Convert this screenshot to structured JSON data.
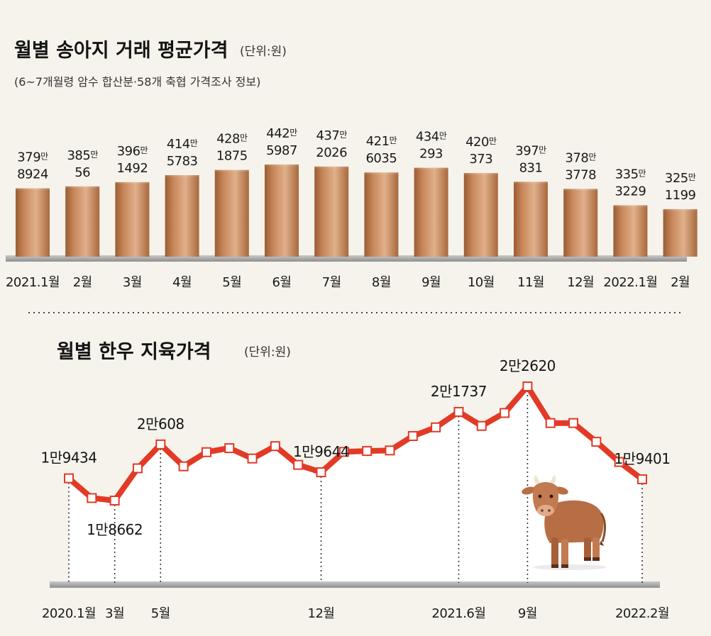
{
  "bar_chart": {
    "title": "월별 송아지 거래 평균가격",
    "unit": "(단위:원)",
    "subtitle": "(6~7개월령 암수 합산분·58개 축협 가격조사 정보)",
    "colors": {
      "bar_top": "#b77a4d",
      "bar_mid": "#d9a77c",
      "bar_dark": "#8f5530",
      "baseline": "#9a9a9a"
    }
  },
  "line_chart": {
    "title": "월별 한우 지육가격",
    "unit": "(단위:원)",
    "colors": {
      "line": "#e23a26",
      "marker_fill": "#ffffff",
      "area": "#ffffff",
      "baseline": "#9a9a9a"
    }
  },
  "chart_data": [
    {
      "type": "bar",
      "title": "월별 송아지 거래 평균가격",
      "unit": "(단위:원)",
      "subtitle": "(6~7개월령 암수 합산분·58개 축협 가격조사 정보)",
      "categories": [
        "2021.1월",
        "2월",
        "3월",
        "4월",
        "5월",
        "6월",
        "7월",
        "8월",
        "9월",
        "10월",
        "11월",
        "12월",
        "2022.1월",
        "2월"
      ],
      "values": [
        3798924,
        3850056,
        3961492,
        4145783,
        4281875,
        4425987,
        4372026,
        4216035,
        4340293,
        4200373,
        3970831,
        3783778,
        3353229,
        3251199
      ],
      "labels": [
        {
          "man": "379",
          "rest": "8924"
        },
        {
          "man": "385",
          "rest": "56"
        },
        {
          "man": "396",
          "rest": "1492"
        },
        {
          "man": "414",
          "rest": "5783"
        },
        {
          "man": "428",
          "rest": "1875"
        },
        {
          "man": "442",
          "rest": "5987"
        },
        {
          "man": "437",
          "rest": "2026"
        },
        {
          "man": "421",
          "rest": "6035"
        },
        {
          "man": "434",
          "rest": "293"
        },
        {
          "man": "420",
          "rest": "373"
        },
        {
          "man": "397",
          "rest": "831"
        },
        {
          "man": "378",
          "rest": "3778"
        },
        {
          "man": "335",
          "rest": "3229"
        },
        {
          "man": "325",
          "rest": "1199"
        }
      ],
      "man_suffix": "만"
    },
    {
      "type": "line",
      "title": "월별 한우 지육가격",
      "unit": "(단위:원)",
      "values": [
        19434,
        18750,
        18662,
        19780,
        20608,
        19850,
        20340,
        20480,
        20120,
        20550,
        19900,
        19644,
        20350,
        20380,
        20400,
        20900,
        21200,
        21737,
        21250,
        21700,
        22620,
        21350,
        21350,
        20700,
        20000,
        19401
      ],
      "x_labels": [
        {
          "index": 0,
          "text": "2020.1월"
        },
        {
          "index": 2,
          "text": "3월"
        },
        {
          "index": 4,
          "text": "5월"
        },
        {
          "index": 11,
          "text": "12월"
        },
        {
          "index": 17,
          "text": "2021.6월"
        },
        {
          "index": 20,
          "text": "9월"
        },
        {
          "index": 25,
          "text": "2022.2월"
        }
      ],
      "callouts": [
        {
          "index": 0,
          "text": "1만9434",
          "pos": "above"
        },
        {
          "index": 2,
          "text": "1만8662",
          "pos": "below"
        },
        {
          "index": 4,
          "text": "2만608",
          "pos": "above"
        },
        {
          "index": 11,
          "text": "1만9644",
          "pos": "above"
        },
        {
          "index": 17,
          "text": "2만1737",
          "pos": "above"
        },
        {
          "index": 20,
          "text": "2만2620",
          "pos": "above"
        },
        {
          "index": 25,
          "text": "1만9401",
          "pos": "above"
        }
      ],
      "dropline_indices": [
        0,
        2,
        4,
        11,
        17,
        20,
        25
      ]
    }
  ],
  "illustration": {
    "icon": "cow-icon"
  }
}
